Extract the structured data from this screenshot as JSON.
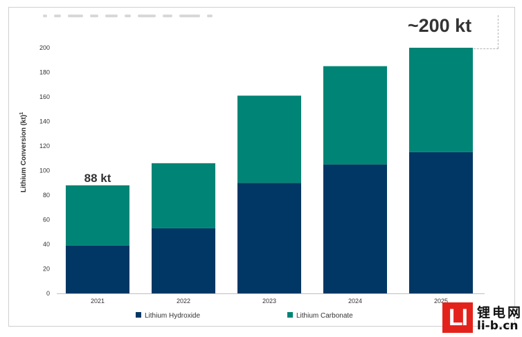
{
  "chart_data": {
    "type": "bar",
    "stacked": true,
    "ylabel": "Lithium Conversion (kt)",
    "ylabel_superscript": "1",
    "ylim": [
      0,
      200
    ],
    "yticks": [
      0,
      20,
      40,
      60,
      80,
      100,
      120,
      140,
      160,
      180,
      200
    ],
    "categories": [
      "2021",
      "2022",
      "2023",
      "2024",
      "2025"
    ],
    "series": [
      {
        "name": "Lithium Hydroxide",
        "color": "#003764",
        "values": [
          39,
          53,
          90,
          105,
          115
        ]
      },
      {
        "name": "Lithium Carbonate",
        "color": "#008475",
        "values": [
          49,
          53,
          71,
          80,
          85
        ]
      }
    ],
    "annotations": [
      {
        "category": "2021",
        "text": "88 kt"
      },
      {
        "category": "2025",
        "text": "~200 kt"
      }
    ],
    "legend_position": "bottom",
    "grid": false
  },
  "watermark": {
    "logo_text": "LI",
    "chinese_text": "锂电网",
    "url_text": "li-b.cn"
  }
}
